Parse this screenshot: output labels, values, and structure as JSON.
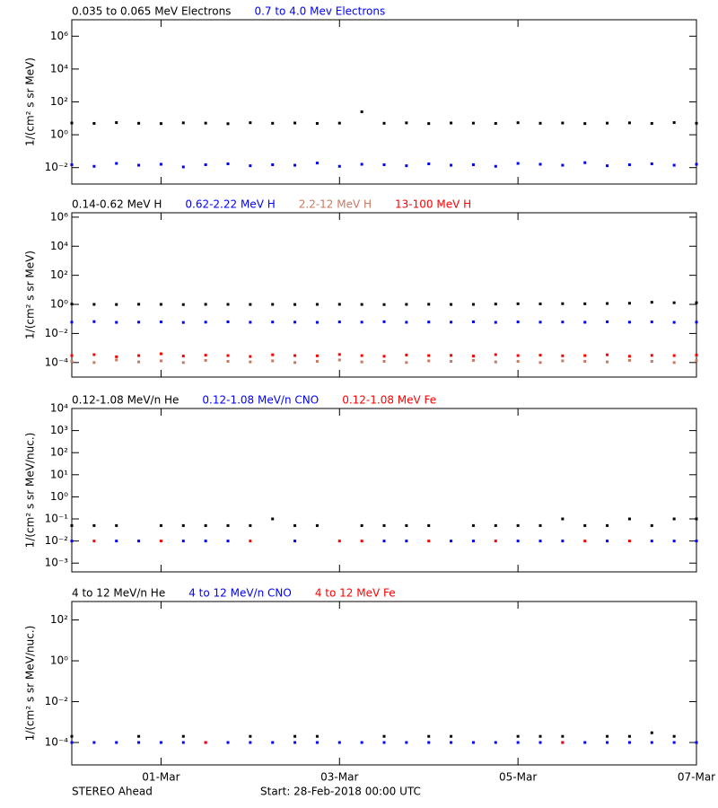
{
  "chart_data": [
    {
      "type": "scatter",
      "log_y": true,
      "ylabel": "1/(cm² s sr MeV)",
      "x": [
        0,
        0.25,
        0.5,
        0.75,
        1,
        1.25,
        1.5,
        1.75,
        2,
        2.25,
        2.5,
        2.75,
        3,
        3.25,
        3.5,
        3.75,
        4,
        4.25,
        4.5,
        4.75,
        5,
        5.25,
        5.5,
        5.75,
        6,
        6.25,
        6.5,
        6.75,
        7
      ],
      "xlim": [
        0,
        7
      ],
      "xticks": [
        1,
        3,
        5,
        7
      ],
      "ylim": [
        0.001,
        10000000
      ],
      "yticks": [
        {
          "value": 0.01,
          "label": "10⁻²"
        },
        {
          "value": 1,
          "label": "10⁰"
        },
        {
          "value": 100,
          "label": "10²"
        },
        {
          "value": 10000,
          "label": "10⁴"
        },
        {
          "value": 1000000,
          "label": "10⁶"
        }
      ],
      "series": [
        {
          "name": "0.035 to 0.065 MeV Electrons",
          "color": "#000000",
          "values": [
            5.2,
            4.9,
            5.5,
            5.0,
            4.8,
            5.3,
            5.1,
            4.7,
            5.4,
            5.0,
            5.2,
            4.9,
            5.1,
            25,
            5.0,
            5.3,
            4.8,
            5.2,
            5.1,
            4.9,
            5.4,
            5.0,
            5.2,
            4.8,
            5.1,
            5.3,
            4.9,
            5.5,
            5.0
          ]
        },
        {
          "name": "0.7 to 4.0 Mev Electrons",
          "color": "#0000ff",
          "values": [
            0.015,
            0.012,
            0.018,
            0.014,
            0.016,
            0.011,
            0.015,
            0.017,
            0.013,
            0.015,
            0.014,
            0.019,
            0.012,
            0.016,
            0.015,
            0.013,
            0.017,
            0.014,
            0.015,
            0.012,
            0.018,
            0.016,
            0.014,
            0.02,
            0.013,
            0.015,
            0.017,
            0.014,
            0.016
          ]
        }
      ]
    },
    {
      "type": "scatter",
      "log_y": true,
      "ylabel": "1/(cm² s sr MeV)",
      "x": [
        0,
        0.25,
        0.5,
        0.75,
        1,
        1.25,
        1.5,
        1.75,
        2,
        2.25,
        2.5,
        2.75,
        3,
        3.25,
        3.5,
        3.75,
        4,
        4.25,
        4.5,
        4.75,
        5,
        5.25,
        5.5,
        5.75,
        6,
        6.25,
        6.5,
        6.75,
        7
      ],
      "xlim": [
        0,
        7
      ],
      "xticks": [
        1,
        3,
        5,
        7
      ],
      "ylim": [
        1e-05,
        2000000
      ],
      "yticks": [
        {
          "value": 0.0001,
          "label": "10⁻⁴"
        },
        {
          "value": 0.01,
          "label": "10⁻²"
        },
        {
          "value": 1,
          "label": "10⁰"
        },
        {
          "value": 100,
          "label": "10²"
        },
        {
          "value": 10000,
          "label": "10⁴"
        },
        {
          "value": 1000000,
          "label": "10⁶"
        }
      ],
      "series": [
        {
          "name": "0.14-0.62 MeV H",
          "color": "#000000",
          "values": [
            1.05,
            1.0,
            0.98,
            1.02,
            1.0,
            0.97,
            1.01,
            1.0,
            0.99,
            1.0,
            0.98,
            1.0,
            1.01,
            0.99,
            0.97,
            1.0,
            1.02,
            0.99,
            1.0,
            1.05,
            1.1,
            1.08,
            1.12,
            1.1,
            1.15,
            1.2,
            1.4,
            1.3,
            1.3
          ]
        },
        {
          "name": "0.62-2.22 MeV H",
          "color": "#0000ff",
          "values": [
            0.06,
            0.065,
            0.058,
            0.06,
            0.062,
            0.057,
            0.06,
            0.063,
            0.059,
            0.061,
            0.06,
            0.058,
            0.062,
            0.06,
            0.064,
            0.059,
            0.061,
            0.06,
            0.063,
            0.058,
            0.062,
            0.06,
            0.061,
            0.059,
            0.063,
            0.06,
            0.062,
            0.058,
            0.06
          ]
        },
        {
          "name": "2.2-12 MeV H",
          "color": "#c87860",
          "values": [
            0.00012,
            0.0001,
            0.00015,
            0.00011,
            0.00013,
            0.0001,
            0.00014,
            0.00012,
            0.00011,
            0.00013,
            0.0001,
            0.00012,
            0.00015,
            0.00011,
            0.00012,
            0.0001,
            0.00013,
            0.00012,
            0.00014,
            0.00011,
            0.00012,
            0.0001,
            0.00013,
            0.00012,
            0.00011,
            0.00014,
            0.00012,
            0.0001,
            0.00013
          ]
        },
        {
          "name": "13-100 MeV H",
          "color": "#ff0000",
          "values": [
            0.0003,
            0.00035,
            0.00025,
            0.0003,
            0.0004,
            0.00028,
            0.00032,
            0.0003,
            0.00026,
            0.00034,
            0.0003,
            0.00029,
            0.00036,
            0.0003,
            0.00027,
            0.00033,
            0.0003,
            0.00031,
            0.00028,
            0.00035,
            0.0003,
            0.00032,
            0.00029,
            0.0003,
            0.00034,
            0.00027,
            0.00031,
            0.0003,
            0.00033
          ]
        }
      ]
    },
    {
      "type": "scatter",
      "log_y": true,
      "ylabel": "1/(cm² s sr MeV/nuc.)",
      "x": [
        0,
        0.25,
        0.5,
        0.75,
        1,
        1.25,
        1.5,
        1.75,
        2,
        2.25,
        2.5,
        2.75,
        3,
        3.25,
        3.5,
        3.75,
        4,
        4.25,
        4.5,
        4.75,
        5,
        5.25,
        5.5,
        5.75,
        6,
        6.25,
        6.5,
        6.75,
        7
      ],
      "xlim": [
        0,
        7
      ],
      "xticks": [
        1,
        3,
        5,
        7
      ],
      "ylim": [
        0.0004,
        10000
      ],
      "yticks": [
        {
          "value": 0.001,
          "label": "10⁻³"
        },
        {
          "value": 0.01,
          "label": "10⁻²"
        },
        {
          "value": 0.1,
          "label": "10⁻¹"
        },
        {
          "value": 1,
          "label": "10⁰"
        },
        {
          "value": 10,
          "label": "10¹"
        },
        {
          "value": 100,
          "label": "10²"
        },
        {
          "value": 1000,
          "label": "10³"
        },
        {
          "value": 10000,
          "label": "10⁴"
        }
      ],
      "series": [
        {
          "name": "0.12-1.08 MeV/n He",
          "color": "#000000",
          "values": [
            0.05,
            0.05,
            0.05,
            null,
            0.05,
            0.05,
            0.05,
            0.05,
            0.05,
            0.1,
            0.05,
            0.05,
            null,
            0.05,
            0.05,
            0.05,
            0.05,
            null,
            0.05,
            0.05,
            0.05,
            0.05,
            0.1,
            0.05,
            0.05,
            0.1,
            0.05,
            0.1,
            0.1
          ]
        },
        {
          "name": "0.12-1.08 MeV/n CNO",
          "color": "#0000ff",
          "values": [
            0.01,
            null,
            0.01,
            0.01,
            null,
            0.01,
            0.01,
            0.01,
            null,
            null,
            0.01,
            null,
            null,
            null,
            0.01,
            0.01,
            null,
            0.01,
            0.01,
            null,
            0.01,
            0.01,
            0.01,
            null,
            0.01,
            null,
            0.01,
            0.01,
            0.01
          ]
        },
        {
          "name": "0.12-1.08 MeV Fe",
          "color": "#ff0000",
          "values": [
            null,
            0.01,
            null,
            null,
            0.01,
            null,
            null,
            null,
            0.01,
            null,
            null,
            null,
            0.01,
            0.01,
            null,
            null,
            0.01,
            null,
            null,
            0.01,
            null,
            null,
            null,
            0.01,
            null,
            0.01,
            null,
            null,
            null
          ]
        }
      ]
    },
    {
      "type": "scatter",
      "log_y": true,
      "ylabel": "1/(cm² s sr MeV/nuc.)",
      "x": [
        0,
        0.25,
        0.5,
        0.75,
        1,
        1.25,
        1.5,
        1.75,
        2,
        2.25,
        2.5,
        2.75,
        3,
        3.25,
        3.5,
        3.75,
        4,
        4.25,
        4.5,
        4.75,
        5,
        5.25,
        5.5,
        5.75,
        6,
        6.25,
        6.5,
        6.75,
        7
      ],
      "xlim": [
        0,
        7
      ],
      "xticks": [
        {
          "value": 1,
          "label": "01-Mar"
        },
        {
          "value": 3,
          "label": "03-Mar"
        },
        {
          "value": 5,
          "label": "05-Mar"
        },
        {
          "value": 7,
          "label": "07-Mar"
        }
      ],
      "ylim": [
        8e-06,
        800
      ],
      "yticks": [
        {
          "value": 0.0001,
          "label": "10⁻⁴"
        },
        {
          "value": 0.01,
          "label": "10⁻²"
        },
        {
          "value": 1,
          "label": "10⁰"
        },
        {
          "value": 100,
          "label": "10²"
        }
      ],
      "series": [
        {
          "name": "4 to 12 MeV/n He",
          "color": "#000000",
          "values": [
            0.0002,
            null,
            null,
            0.0002,
            null,
            0.0002,
            null,
            null,
            0.0002,
            null,
            0.0002,
            0.0002,
            null,
            null,
            0.0002,
            null,
            0.0002,
            0.0002,
            null,
            null,
            0.0002,
            0.0002,
            0.0002,
            null,
            0.0002,
            0.0002,
            0.0003,
            0.0002,
            null
          ]
        },
        {
          "name": "4 to 12 MeV/n CNO",
          "color": "#0000ff",
          "values": [
            0.0001,
            0.0001,
            0.0001,
            0.0001,
            0.0001,
            0.0001,
            0.0001,
            0.0001,
            0.0001,
            0.0001,
            0.0001,
            0.0001,
            0.0001,
            0.0001,
            0.0001,
            0.0001,
            0.0001,
            0.0001,
            0.0001,
            0.0001,
            0.0001,
            0.0001,
            0.0001,
            0.0001,
            0.0001,
            0.0001,
            0.0001,
            0.0001,
            0.0001
          ]
        },
        {
          "name": "4 to 12 MeV Fe",
          "color": "#ff0000",
          "values": [
            null,
            null,
            null,
            null,
            null,
            null,
            0.0001,
            null,
            null,
            null,
            null,
            null,
            null,
            null,
            null,
            null,
            null,
            null,
            null,
            null,
            null,
            null,
            0.0001,
            null,
            null,
            null,
            null,
            null,
            null
          ]
        }
      ]
    }
  ],
  "footer": {
    "left": "STEREO Ahead",
    "center": "Start: 28-Feb-2018 00:00 UTC"
  }
}
